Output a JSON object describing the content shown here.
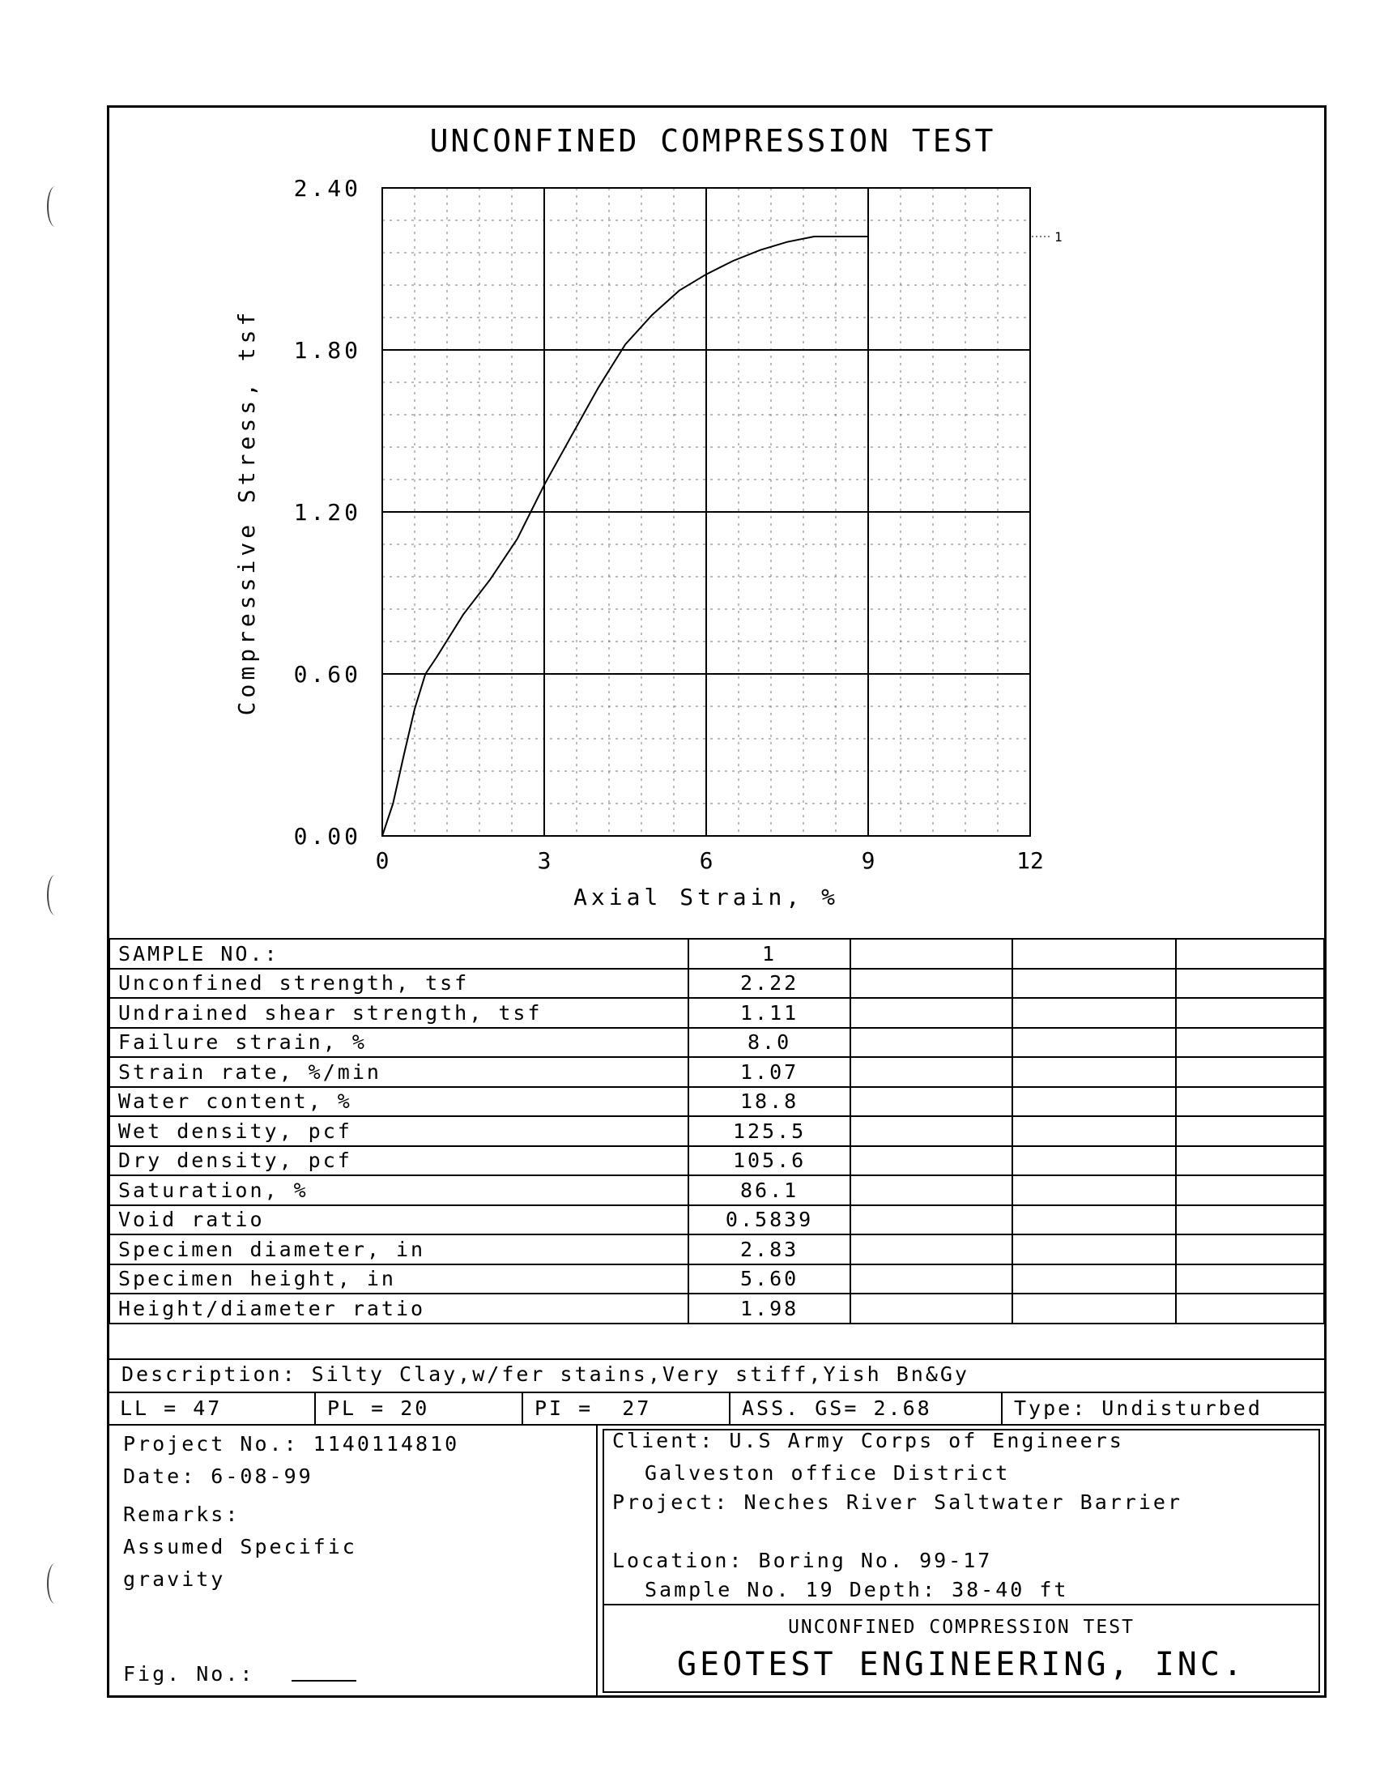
{
  "chart_data": {
    "type": "line",
    "title": "UNCONFINED COMPRESSION TEST",
    "xlabel": "Axial Strain, %",
    "ylabel": "Compressive Stress, tsf",
    "xlim": [
      0,
      12
    ],
    "ylim": [
      0,
      2.4
    ],
    "xticks": [
      "0",
      "3",
      "6",
      "9",
      "12"
    ],
    "yticks": [
      "0.00",
      "0.60",
      "1.20",
      "1.80",
      "2.40"
    ],
    "grid": true,
    "series": [
      {
        "name": "1",
        "x": [
          0,
          0.2,
          0.4,
          0.6,
          0.8,
          1.0,
          1.5,
          2.0,
          2.5,
          3.0,
          3.5,
          4.0,
          4.5,
          5.0,
          5.5,
          6.0,
          6.5,
          7.0,
          7.5,
          8.0,
          8.5,
          9.0
        ],
        "y": [
          0,
          0.12,
          0.3,
          0.47,
          0.6,
          0.66,
          0.82,
          0.95,
          1.1,
          1.3,
          1.48,
          1.66,
          1.82,
          1.93,
          2.02,
          2.08,
          2.13,
          2.17,
          2.2,
          2.22,
          2.22,
          2.22
        ]
      }
    ]
  },
  "table": {
    "sample_header": "SAMPLE NO.:",
    "rows": [
      {
        "label": "Unconfined strength, tsf",
        "value": "2.22"
      },
      {
        "label": "Undrained shear strength, tsf",
        "value": "1.11"
      },
      {
        "label": "Failure strain, %",
        "value": "8.0"
      },
      {
        "label": "Strain rate, %/min",
        "value": "1.07"
      },
      {
        "label": "Water content, %",
        "value": "18.8"
      },
      {
        "label": "Wet density, pcf",
        "value": "125.5"
      },
      {
        "label": "Dry density, pcf",
        "value": "105.6"
      },
      {
        "label": "Saturation, %",
        "value": "86.1"
      },
      {
        "label": "Void ratio",
        "value": "0.5839"
      },
      {
        "label": "Specimen diameter, in",
        "value": "2.83"
      },
      {
        "label": "Specimen height, in",
        "value": "5.60"
      },
      {
        "label": "Height/diameter ratio",
        "value": "1.98"
      }
    ],
    "sample_no": "1"
  },
  "description": "Description: Silty Clay,w/fer stains,Very stiff,Yish Bn&Gy",
  "limits": {
    "ll": "LL = 47",
    "pl": "PL = 20",
    "pi": "PI =  27",
    "gs": "ASS. GS= 2.68",
    "type": "Type: Undisturbed"
  },
  "info": {
    "project_no": "Project No.: 1140114810",
    "date": "Date: 6-08-99",
    "remarks": "Remarks:",
    "remark_1": "Assumed Specific",
    "remark_2": "gravity",
    "fig_no": "Fig. No.:",
    "client": "Client: U.S Army Corps of Engineers",
    "client_2": "Galveston office District",
    "project": "Project: Neches River Saltwater Barrier",
    "location": "Location: Boring No. 99-17",
    "sample": "Sample No. 19  Depth: 38-40 ft",
    "report_title": "UNCONFINED COMPRESSION TEST",
    "company": "GEOTEST ENGINEERING, INC."
  }
}
